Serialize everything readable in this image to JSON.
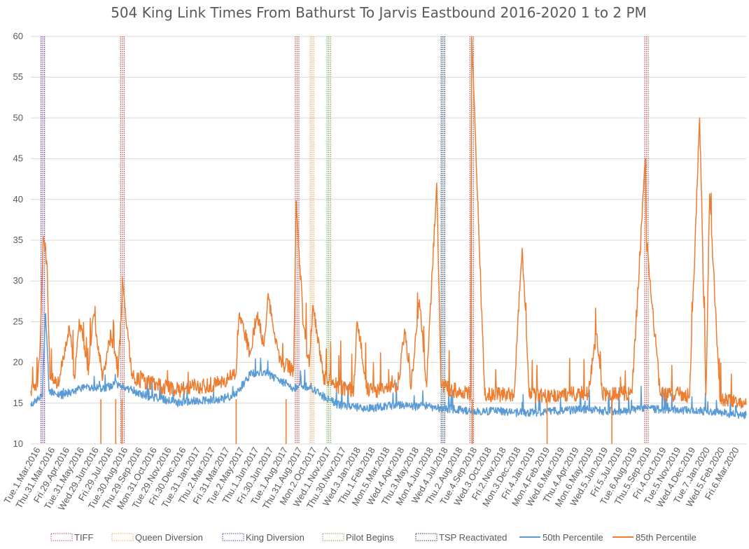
{
  "chart_data": {
    "type": "line",
    "title": "504 King Link Times From Bathurst To Jarvis Eastbound 2016-2020 1 to 2 PM",
    "xlabel": "",
    "ylabel": "",
    "ylim": [
      10,
      60
    ],
    "yticks": [
      10,
      15,
      20,
      25,
      30,
      35,
      40,
      45,
      50,
      55,
      60
    ],
    "grid": true,
    "legend_position": "bottom",
    "x_start": "2016-03-01",
    "x_end": "2020-03-31",
    "x_tick_labels": [
      "Tue.1.Mar.2016",
      "Thu.31.Mar.2016",
      "Fri.29.Apr.2016",
      "Tue.31.May.2016",
      "Wed.29.Jun.2016",
      "Fri.29.Jul.2016",
      "Tue.30.Aug.2016",
      "Thu.29.Sep.2016",
      "Mon.31.Oct.2016",
      "Tue.29.Nov.2016",
      "Fri.30.Dec.2016",
      "Tue.31.Jan.2017",
      "Thu.2.Mar.2017",
      "Fri.31.Mar.2017",
      "Tue.2.May.2017",
      "Thu.1.Jun.2017",
      "Fri.30.Jun.2017",
      "Tue.1.Aug.2017",
      "Thu.31.Aug.2017",
      "Mon.2.Oct.2017",
      "Wed.1.Nov.2017",
      "Thu.30.Nov.2017",
      "Wed.3.Jan.2018",
      "Thu.1.Feb.2018",
      "Mon.5.Mar.2018",
      "Wed.4.Apr.2018",
      "Thu.3.May.2018",
      "Mon.4.Jun.2018",
      "Wed.4.Jul.2018",
      "Thu.2.Aug.2018",
      "Tue.4.Sep.2018",
      "Wed.3.Oct.2018",
      "Fri.2.Nov.2018",
      "Mon.3.Dec.2018",
      "Fri.4.Jan.2019",
      "Mon.4.Feb.2019",
      "Wed.6.Mar.2019",
      "Thu.4.Apr.2019",
      "Mon.6.May.2019",
      "Wed.5.Jun.2019",
      "Fri.5.Jul.2019",
      "Tue.6.Aug.2019",
      "Thu.5.Sep.2019",
      "Fri.4.Oct.2019",
      "Tue.5.Nov.2019",
      "Wed.4.Dec.2019",
      "Tue.7.Jan.2020",
      "Wed.5.Feb.2020",
      "Fri.6.Mar.2020"
    ],
    "event_markers": [
      {
        "name": "TIFF",
        "color": "#c0504d",
        "dates": [
          "2016-09-08",
          "2017-09-07",
          "2018-09-06",
          "2019-09-05"
        ]
      },
      {
        "name": "Queen Diversion",
        "color": "#f2a65a",
        "dates": [
          "2017-10-08"
        ]
      },
      {
        "name": "King Diversion",
        "color": "#7030a0",
        "dates": [
          "2016-03-26"
        ]
      },
      {
        "name": "Pilot Begins",
        "color": "#70ad47",
        "dates": [
          "2017-11-12"
        ]
      },
      {
        "name": "TSP Reactivated",
        "color": "#1f3864",
        "dates": [
          "2018-07-08"
        ]
      }
    ],
    "series": [
      {
        "name": "50th Percentile",
        "color": "#5b9bd5",
        "style": "line",
        "points": [
          [
            "2016-03-01",
            15.0
          ],
          [
            "2016-03-15",
            15.3
          ],
          [
            "2016-03-25",
            16.0
          ],
          [
            "2016-04-01",
            26.0
          ],
          [
            "2016-04-08",
            16.5
          ],
          [
            "2016-04-29",
            15.8
          ],
          [
            "2016-05-31",
            16.5
          ],
          [
            "2016-06-29",
            17.0
          ],
          [
            "2016-07-29",
            16.8
          ],
          [
            "2016-08-30",
            17.3
          ],
          [
            "2016-09-29",
            16.5
          ],
          [
            "2016-10-31",
            15.8
          ],
          [
            "2016-11-29",
            15.5
          ],
          [
            "2016-12-30",
            15.0
          ],
          [
            "2017-01-31",
            15.2
          ],
          [
            "2017-03-02",
            15.3
          ],
          [
            "2017-03-31",
            15.4
          ],
          [
            "2017-05-02",
            16.0
          ],
          [
            "2017-06-01",
            18.5
          ],
          [
            "2017-06-30",
            18.8
          ],
          [
            "2017-08-01",
            17.8
          ],
          [
            "2017-08-31",
            16.8
          ],
          [
            "2017-10-02",
            17.0
          ],
          [
            "2017-11-01",
            15.8
          ],
          [
            "2017-11-30",
            14.8
          ],
          [
            "2018-01-03",
            14.5
          ],
          [
            "2018-02-01",
            14.3
          ],
          [
            "2018-03-05",
            14.5
          ],
          [
            "2018-04-04",
            14.8
          ],
          [
            "2018-05-03",
            14.5
          ],
          [
            "2018-06-04",
            14.6
          ],
          [
            "2018-07-04",
            14.3
          ],
          [
            "2018-08-02",
            14.2
          ],
          [
            "2018-09-04",
            14.0
          ],
          [
            "2018-10-03",
            14.0
          ],
          [
            "2018-11-02",
            14.0
          ],
          [
            "2018-12-03",
            13.8
          ],
          [
            "2019-01-04",
            13.8
          ],
          [
            "2019-02-04",
            13.9
          ],
          [
            "2019-03-06",
            14.0
          ],
          [
            "2019-04-04",
            14.1
          ],
          [
            "2019-05-06",
            14.2
          ],
          [
            "2019-06-05",
            14.0
          ],
          [
            "2019-07-05",
            14.0
          ],
          [
            "2019-08-06",
            14.1
          ],
          [
            "2019-09-05",
            14.3
          ],
          [
            "2019-10-04",
            14.2
          ],
          [
            "2019-11-05",
            14.2
          ],
          [
            "2019-12-04",
            14.0
          ],
          [
            "2020-01-07",
            14.0
          ],
          [
            "2020-02-05",
            13.8
          ],
          [
            "2020-03-06",
            13.6
          ],
          [
            "2020-03-31",
            13.5
          ]
        ]
      },
      {
        "name": "85th Percentile",
        "color": "#ed7d31",
        "style": "line",
        "points": [
          [
            "2016-03-01",
            16.5
          ],
          [
            "2016-03-15",
            17.0
          ],
          [
            "2016-03-20",
            21.6
          ],
          [
            "2016-03-27",
            35.5
          ],
          [
            "2016-04-03",
            32.5
          ],
          [
            "2016-04-10",
            18.0
          ],
          [
            "2016-04-29",
            17.5
          ],
          [
            "2016-05-20",
            24.5
          ],
          [
            "2016-05-31",
            18.0
          ],
          [
            "2016-06-10",
            25.3
          ],
          [
            "2016-06-29",
            18.5
          ],
          [
            "2016-07-10",
            25.8
          ],
          [
            "2016-07-29",
            18.0
          ],
          [
            "2016-08-15",
            23.5
          ],
          [
            "2016-08-30",
            18.5
          ],
          [
            "2016-09-09",
            29.5
          ],
          [
            "2016-09-29",
            18.0
          ],
          [
            "2016-10-31",
            17.5
          ],
          [
            "2016-11-29",
            17.0
          ],
          [
            "2016-12-30",
            16.5
          ],
          [
            "2017-01-31",
            17.0
          ],
          [
            "2017-03-02",
            17.0
          ],
          [
            "2017-03-31",
            17.5
          ],
          [
            "2017-05-02",
            18.5
          ],
          [
            "2017-05-10",
            26.1
          ],
          [
            "2017-06-01",
            21.0
          ],
          [
            "2017-06-15",
            25.8
          ],
          [
            "2017-06-30",
            22.0
          ],
          [
            "2017-07-08",
            28.2
          ],
          [
            "2017-08-01",
            20.0
          ],
          [
            "2017-08-31",
            19.0
          ],
          [
            "2017-09-05",
            39.8
          ],
          [
            "2017-09-20",
            24.5
          ],
          [
            "2017-10-02",
            19.5
          ],
          [
            "2017-10-10",
            27.0
          ],
          [
            "2017-11-01",
            18.0
          ],
          [
            "2017-11-30",
            17.0
          ],
          [
            "2018-01-03",
            16.5
          ],
          [
            "2018-01-10",
            25.0
          ],
          [
            "2018-02-01",
            16.5
          ],
          [
            "2018-03-05",
            16.5
          ],
          [
            "2018-04-04",
            17.0
          ],
          [
            "2018-04-20",
            23.5
          ],
          [
            "2018-05-03",
            17.0
          ],
          [
            "2018-05-20",
            27.7
          ],
          [
            "2018-06-04",
            17.0
          ],
          [
            "2018-06-25",
            42.0
          ],
          [
            "2018-07-04",
            17.0
          ],
          [
            "2018-08-02",
            16.5
          ],
          [
            "2018-09-04",
            16.0
          ],
          [
            "2018-09-06",
            60.0
          ],
          [
            "2018-10-03",
            16.0
          ],
          [
            "2018-11-02",
            16.0
          ],
          [
            "2018-12-03",
            15.8
          ],
          [
            "2018-12-20",
            34.0
          ],
          [
            "2019-01-04",
            15.8
          ],
          [
            "2019-02-04",
            15.8
          ],
          [
            "2019-03-06",
            16.0
          ],
          [
            "2019-04-04",
            16.0
          ],
          [
            "2019-05-06",
            16.2
          ],
          [
            "2019-05-25",
            23.5
          ],
          [
            "2019-06-05",
            16.0
          ],
          [
            "2019-07-05",
            16.0
          ],
          [
            "2019-08-06",
            16.2
          ],
          [
            "2019-09-03",
            45.0
          ],
          [
            "2019-09-05",
            35.0
          ],
          [
            "2019-10-04",
            16.0
          ],
          [
            "2019-11-05",
            16.0
          ],
          [
            "2019-12-04",
            15.8
          ],
          [
            "2019-12-25",
            50.0
          ],
          [
            "2020-01-07",
            16.0
          ],
          [
            "2020-01-15",
            40.7
          ],
          [
            "2020-02-05",
            15.5
          ],
          [
            "2020-03-06",
            15.0
          ],
          [
            "2020-03-31",
            14.8
          ]
        ]
      }
    ]
  }
}
